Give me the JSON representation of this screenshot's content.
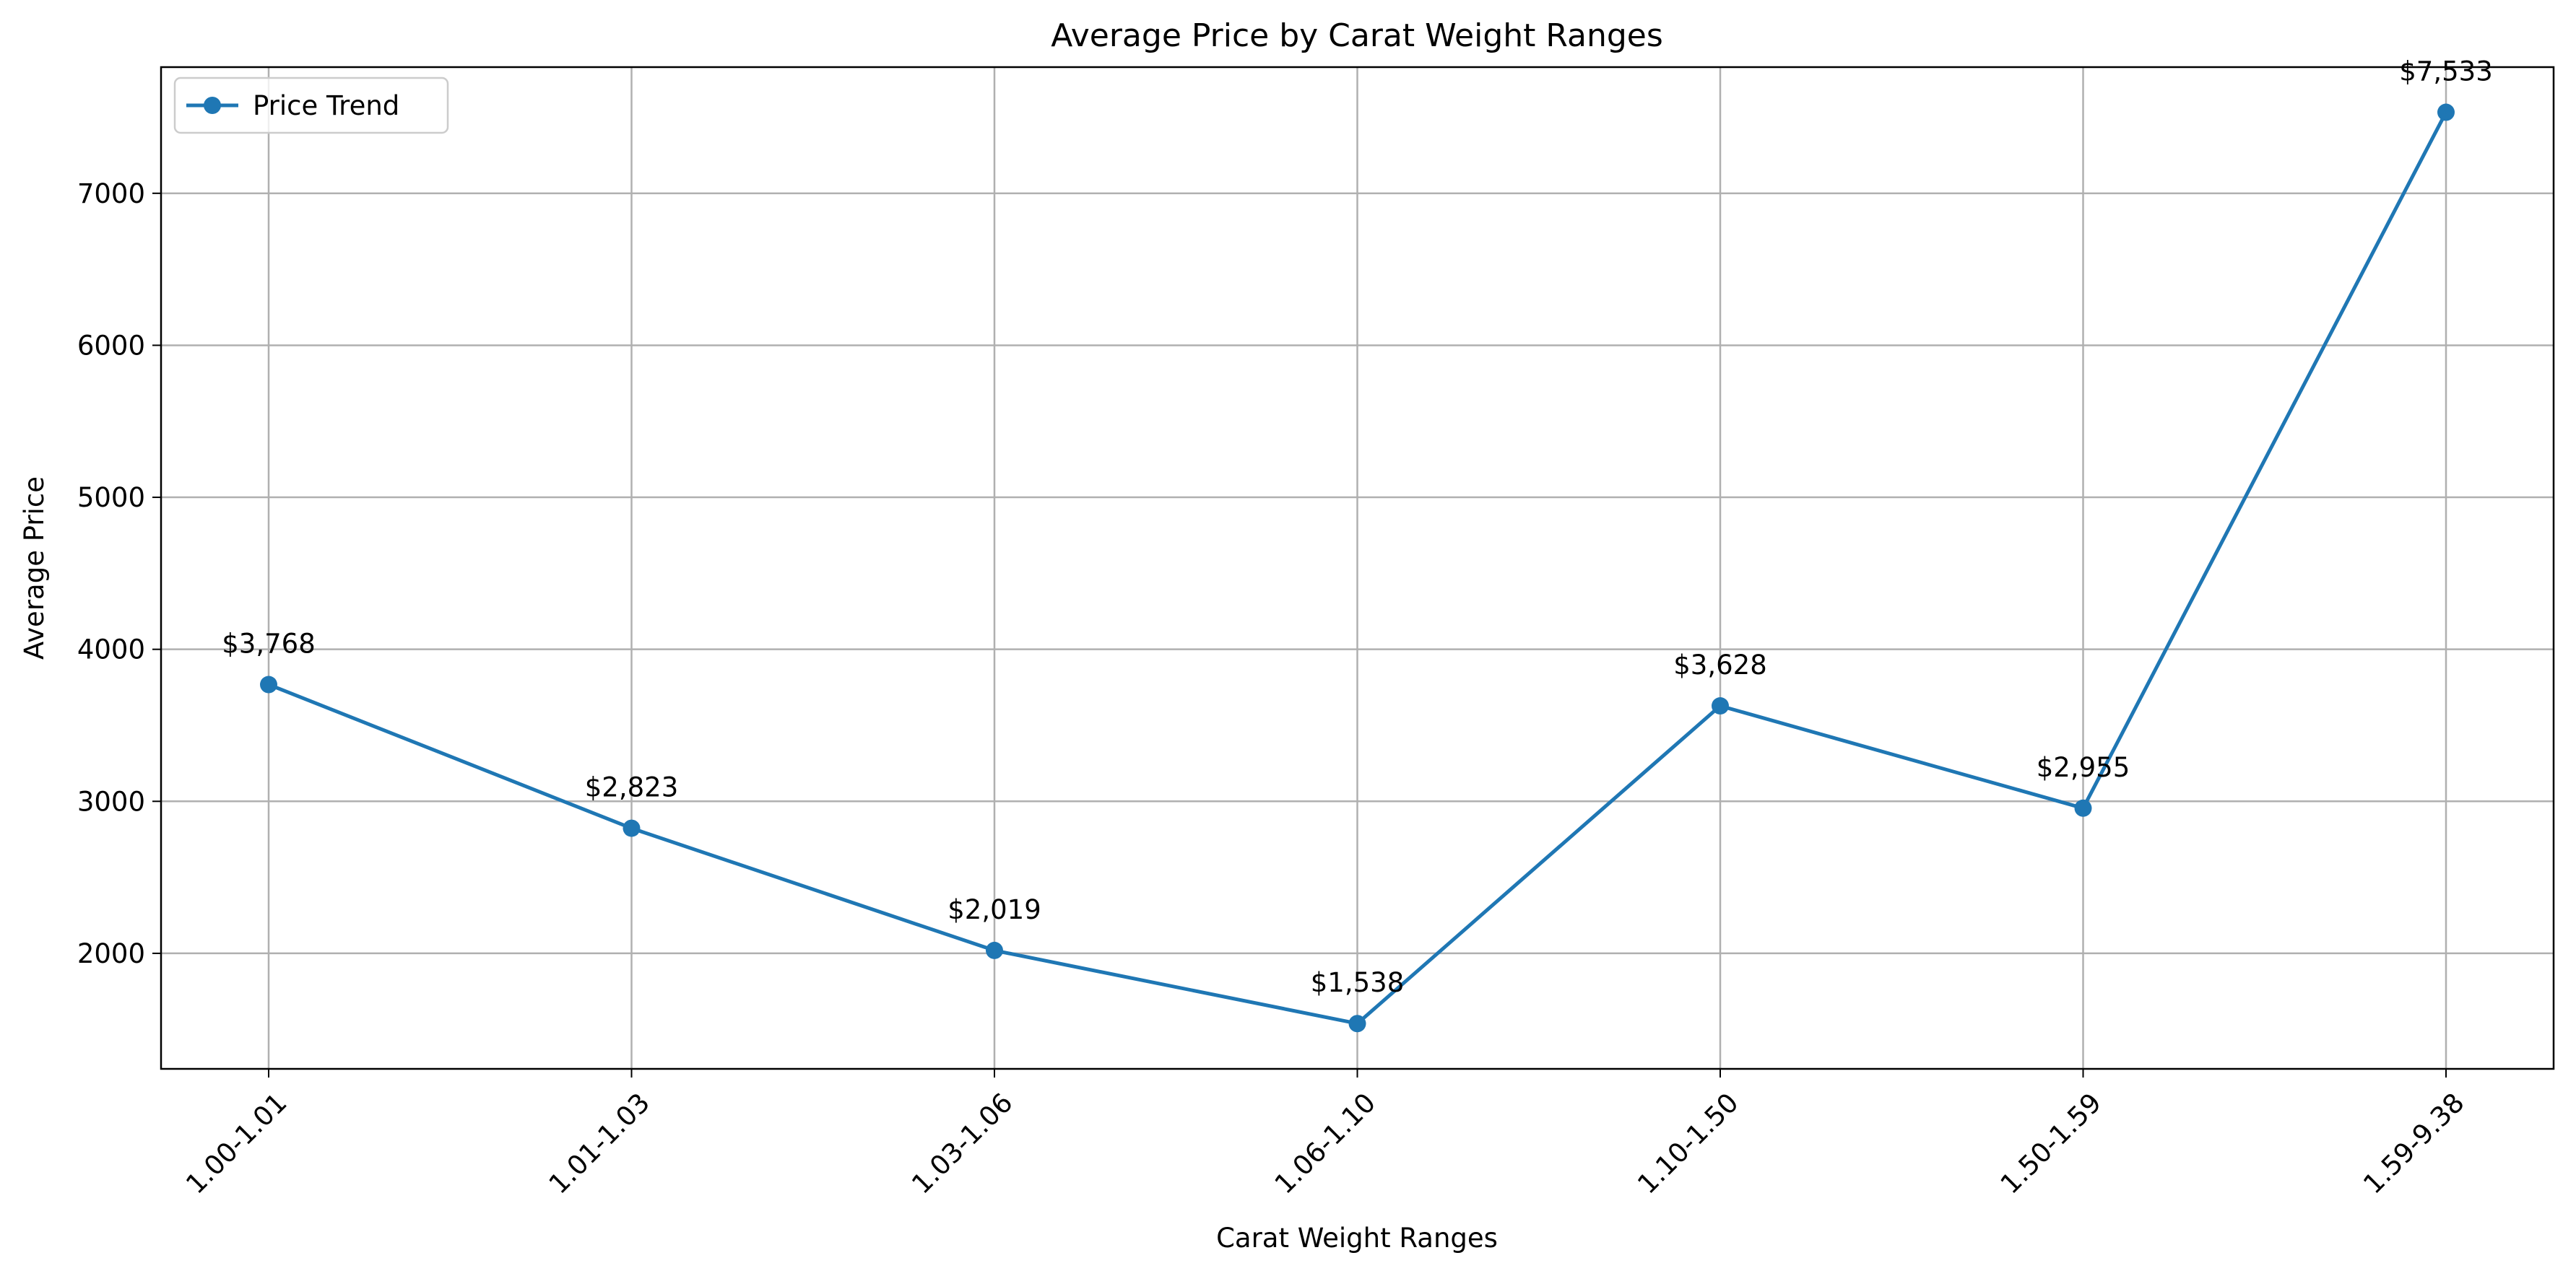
{
  "chart_data": {
    "type": "line",
    "title": "Average Price by Carat Weight Ranges",
    "xlabel": "Carat Weight Ranges",
    "ylabel": "Average Price",
    "categories": [
      "1.00-1.01",
      "1.01-1.03",
      "1.03-1.06",
      "1.06-1.10",
      "1.10-1.50",
      "1.50-1.59",
      "1.59-9.38"
    ],
    "series": [
      {
        "name": "Price Trend",
        "values": [
          3768,
          2823,
          2019,
          1538,
          3628,
          2955,
          7533
        ],
        "color": "#1f77b4",
        "marker": "circle"
      }
    ],
    "data_labels": [
      "$3,768",
      "$2,823",
      "$2,019",
      "$1,538",
      "$3,628",
      "$2,955",
      "$7,533"
    ],
    "yticks": [
      2000,
      3000,
      4000,
      5000,
      6000,
      7000
    ],
    "ylim": [
      1240,
      7830
    ],
    "grid": true,
    "legend_position": "upper-left"
  }
}
